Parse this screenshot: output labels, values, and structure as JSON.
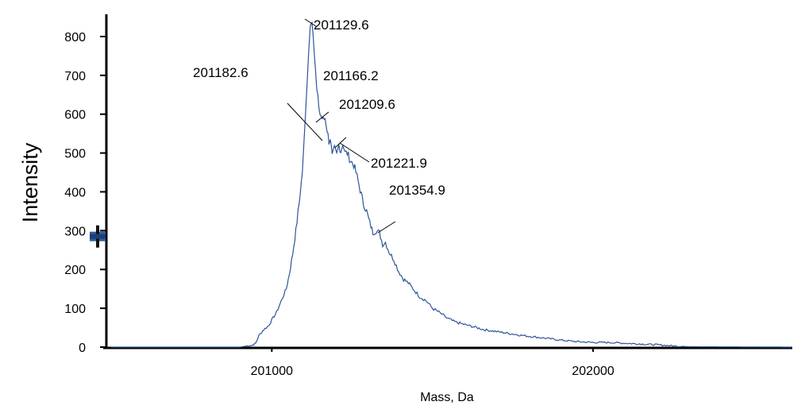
{
  "chart_data": {
    "type": "line",
    "title": "",
    "xlabel": "Mass, Da",
    "ylabel": "Intensity",
    "xlim": [
      200500,
      202620
    ],
    "ylim": [
      0,
      845
    ],
    "x_ticks": [
      201000,
      202000
    ],
    "x_tick_labels": [
      "201000",
      "202000"
    ],
    "y_ticks": [
      0,
      100,
      200,
      300,
      400,
      500,
      600,
      700,
      800
    ],
    "y_tick_labels": [
      "0",
      "100",
      "200",
      "300",
      "400",
      "500",
      "600",
      "700",
      "800"
    ],
    "grid": false,
    "legend": "none",
    "line_color": "#2f5597",
    "axis_color": "#000000",
    "marker_color": "#2e5fa0",
    "y_marker_value": 285,
    "series": [
      {
        "x": [
          200500,
          200900,
          200940,
          200950,
          200960,
          200975,
          200990,
          201000,
          201015,
          201030,
          201045,
          201055,
          201065,
          201075,
          201085,
          201095,
          201100,
          201105,
          201110,
          201115,
          201120,
          201125,
          201128,
          201132,
          201140,
          201150,
          201160,
          201166,
          201172,
          201178,
          201182,
          201188,
          201195,
          201202,
          201209,
          201215,
          201221,
          201228,
          201235,
          201245,
          201255,
          201265,
          201275,
          201285,
          201295,
          201305,
          201315,
          201325,
          201335,
          201345,
          201354,
          201365,
          201380,
          201395,
          201410,
          201425,
          201440,
          201460,
          201480,
          201500,
          201520,
          201545,
          201570,
          201600,
          201630,
          201660,
          201700,
          201740,
          201780,
          201820,
          201860,
          201900,
          201950,
          202000,
          202050,
          202100,
          202150,
          202200,
          202250,
          202300,
          202620
        ],
        "y": [
          0,
          0,
          5,
          10,
          30,
          45,
          55,
          70,
          90,
          120,
          150,
          190,
          240,
          300,
          370,
          450,
          520,
          600,
          690,
          770,
          830,
          845,
          820,
          760,
          660,
          600,
          585,
          590,
          560,
          530,
          540,
          490,
          510,
          495,
          520,
          505,
          525,
          500,
          500,
          480,
          470,
          440,
          405,
          370,
          350,
          320,
          295,
          300,
          295,
          265,
          270,
          245,
          225,
          195,
          175,
          165,
          150,
          130,
          120,
          100,
          90,
          75,
          65,
          58,
          52,
          45,
          40,
          35,
          30,
          26,
          22,
          18,
          14,
          12,
          12,
          10,
          8,
          6,
          3,
          1,
          0
        ]
      }
    ],
    "annotations": [
      {
        "text": "201129.6",
        "x": 201129.6,
        "y": 845
      },
      {
        "text": "201182.6",
        "x": 201182.6,
        "y": 530
      },
      {
        "text": "201166.2",
        "x": 201166.2,
        "y": 590
      },
      {
        "text": "201209.6",
        "x": 201209.6,
        "y": 520
      },
      {
        "text": "201221.9",
        "x": 201221.9,
        "y": 525
      },
      {
        "text": "201354.9",
        "x": 201354.9,
        "y": 295
      }
    ]
  }
}
